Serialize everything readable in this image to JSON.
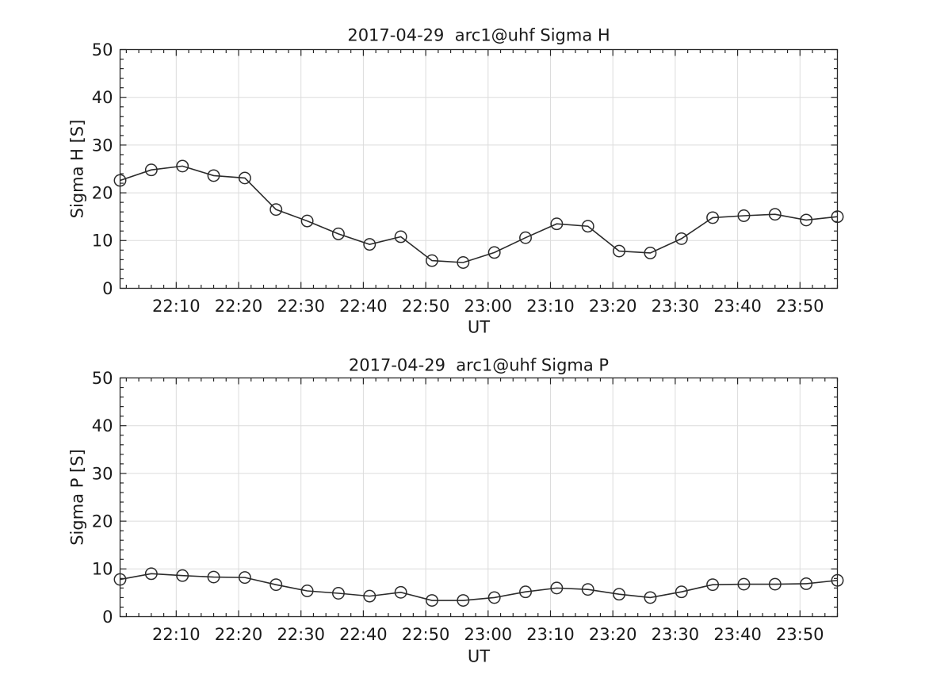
{
  "figure": {
    "background": "#ffffff",
    "text_color": "#1a1a1a",
    "axis_color": "#262626",
    "grid_color": "#dcdcdc",
    "line_color": "#2b2b2b"
  },
  "chart_data": [
    {
      "type": "line",
      "title": "2017-04-29  arc1@uhf Sigma H",
      "xlabel": "UT",
      "ylabel": "Sigma H [S]",
      "ylim": [
        0,
        50
      ],
      "yticks": [
        0,
        10,
        20,
        30,
        40,
        50
      ],
      "xticks": [
        "22:10",
        "22:20",
        "22:30",
        "22:40",
        "22:50",
        "23:00",
        "23:10",
        "23:20",
        "23:30",
        "23:40",
        "23:50"
      ],
      "grid": true,
      "legend": "none",
      "marker": "open-circle",
      "x": [
        "22:01",
        "22:06",
        "22:11",
        "22:16",
        "22:21",
        "22:26",
        "22:31",
        "22:36",
        "22:41",
        "22:46",
        "22:51",
        "22:56",
        "23:01",
        "23:06",
        "23:11",
        "23:16",
        "23:21",
        "23:26",
        "23:31",
        "23:36",
        "23:41",
        "23:46",
        "23:51",
        "23:56"
      ],
      "series": [
        {
          "name": "Sigma H",
          "values": [
            22.6,
            24.8,
            25.6,
            23.6,
            23.1,
            16.5,
            14.1,
            11.4,
            9.2,
            10.8,
            5.8,
            5.4,
            7.5,
            10.6,
            13.5,
            13.0,
            7.8,
            7.4,
            10.4,
            14.8,
            15.2,
            15.5,
            14.3,
            15.0
          ]
        }
      ]
    },
    {
      "type": "line",
      "title": "2017-04-29  arc1@uhf Sigma P",
      "xlabel": "UT",
      "ylabel": "Sigma P [S]",
      "ylim": [
        0,
        50
      ],
      "yticks": [
        0,
        10,
        20,
        30,
        40,
        50
      ],
      "xticks": [
        "22:10",
        "22:20",
        "22:30",
        "22:40",
        "22:50",
        "23:00",
        "23:10",
        "23:20",
        "23:30",
        "23:40",
        "23:50"
      ],
      "grid": true,
      "legend": "none",
      "marker": "open-circle",
      "x": [
        "22:01",
        "22:06",
        "22:11",
        "22:16",
        "22:21",
        "22:26",
        "22:31",
        "22:36",
        "22:41",
        "22:46",
        "22:51",
        "22:56",
        "23:01",
        "23:06",
        "23:11",
        "23:16",
        "23:21",
        "23:26",
        "23:31",
        "23:36",
        "23:41",
        "23:46",
        "23:51",
        "23:56"
      ],
      "series": [
        {
          "name": "Sigma P",
          "values": [
            7.8,
            9.0,
            8.6,
            8.3,
            8.2,
            6.7,
            5.4,
            4.9,
            4.3,
            5.1,
            3.4,
            3.4,
            4.0,
            5.2,
            6.0,
            5.7,
            4.7,
            4.0,
            5.2,
            6.7,
            6.8,
            6.8,
            6.9,
            7.6
          ]
        }
      ]
    }
  ]
}
